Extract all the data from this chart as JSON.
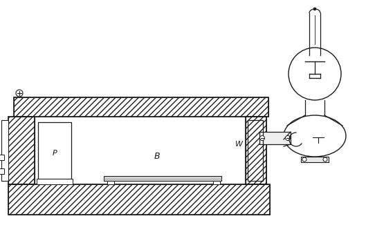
{
  "bg_color": "#ffffff",
  "line_color": "#1a1a1a",
  "label_P": "P",
  "label_B": "B",
  "label_W": "W",
  "figsize": [
    5.29,
    3.39
  ],
  "dpi": 100
}
